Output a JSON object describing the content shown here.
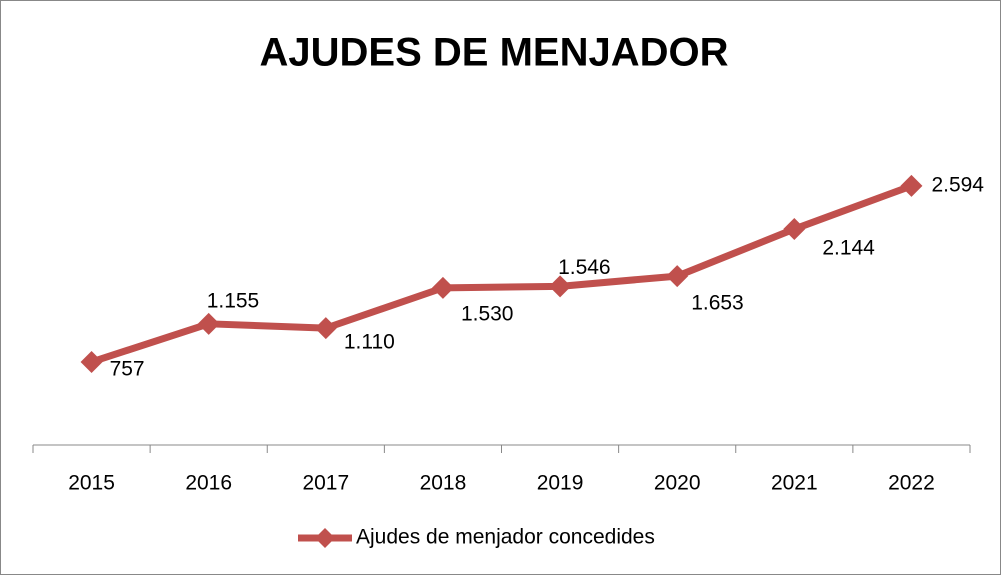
{
  "chart_data": {
    "type": "line",
    "title": "AJUDES DE MENJADOR",
    "categories": [
      "2015",
      "2016",
      "2017",
      "2018",
      "2019",
      "2020",
      "2021",
      "2022"
    ],
    "series": [
      {
        "name": "Ajudes de menjador concedides",
        "color": "#c0504d",
        "values": [
          757,
          1155,
          1110,
          1530,
          1546,
          1653,
          2144,
          2594
        ],
        "value_labels": [
          "757",
          "1.155",
          "1.110",
          "1.530",
          "1.546",
          "1.653",
          "2.144",
          "2.594"
        ]
      }
    ],
    "ylim": [
      0,
      3000
    ]
  }
}
